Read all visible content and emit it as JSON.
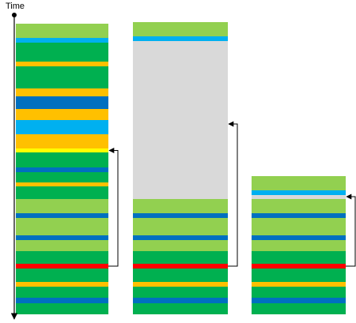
{
  "axis": {
    "label": "Time"
  },
  "colors": {
    "light_green": "#92d050",
    "green": "#00b050",
    "light_blue": "#00b0f0",
    "blue": "#0070c0",
    "orange": "#ffc000",
    "yellow": "#ffff00",
    "red": "#ff0000",
    "gray": "#d9d9d9",
    "arrow": "#000000"
  },
  "columns": [
    {
      "id": "column-1",
      "segments": [
        {
          "color": "light_green",
          "h": 18
        },
        {
          "color": "light_blue",
          "h": 6
        },
        {
          "color": "green",
          "h": 24
        },
        {
          "color": "orange",
          "h": 6
        },
        {
          "color": "green",
          "h": 28
        },
        {
          "color": "orange",
          "h": 10
        },
        {
          "color": "blue",
          "h": 16
        },
        {
          "color": "orange",
          "h": 14
        },
        {
          "color": "light_blue",
          "h": 18
        },
        {
          "color": "orange",
          "h": 18
        },
        {
          "color": "yellow",
          "h": 5
        },
        {
          "color": "green",
          "h": 19
        },
        {
          "color": "blue",
          "h": 6
        },
        {
          "color": "green",
          "h": 13
        },
        {
          "color": "orange",
          "h": 5
        },
        {
          "color": "green",
          "h": 16
        },
        {
          "color": "light_green",
          "h": 18
        },
        {
          "color": "blue",
          "h": 6
        },
        {
          "color": "light_green",
          "h": 22
        },
        {
          "color": "blue",
          "h": 6
        },
        {
          "color": "light_green",
          "h": 14
        },
        {
          "color": "green",
          "h": 16
        },
        {
          "color": "red",
          "h": 6
        },
        {
          "color": "green",
          "h": 17
        },
        {
          "color": "orange",
          "h": 6
        },
        {
          "color": "green",
          "h": 14
        },
        {
          "color": "blue",
          "h": 7
        },
        {
          "color": "green",
          "h": 14
        }
      ]
    },
    {
      "id": "column-2",
      "segments": [
        {
          "color": "light_green",
          "h": 18
        },
        {
          "color": "light_blue",
          "h": 6
        },
        {
          "color": "gray",
          "h": 200
        },
        {
          "color": "light_green",
          "h": 18
        },
        {
          "color": "blue",
          "h": 6
        },
        {
          "color": "light_green",
          "h": 22
        },
        {
          "color": "blue",
          "h": 6
        },
        {
          "color": "light_green",
          "h": 14
        },
        {
          "color": "green",
          "h": 16
        },
        {
          "color": "red",
          "h": 6
        },
        {
          "color": "green",
          "h": 17
        },
        {
          "color": "orange",
          "h": 6
        },
        {
          "color": "green",
          "h": 14
        },
        {
          "color": "blue",
          "h": 7
        },
        {
          "color": "green",
          "h": 14
        }
      ]
    },
    {
      "id": "column-3",
      "segments": [
        {
          "color": "light_green",
          "h": 18
        },
        {
          "color": "light_blue",
          "h": 6
        },
        {
          "color": "gray",
          "h": 5
        },
        {
          "color": "light_green",
          "h": 18
        },
        {
          "color": "blue",
          "h": 6
        },
        {
          "color": "light_green",
          "h": 22
        },
        {
          "color": "blue",
          "h": 6
        },
        {
          "color": "light_green",
          "h": 14
        },
        {
          "color": "green",
          "h": 16
        },
        {
          "color": "red",
          "h": 6
        },
        {
          "color": "green",
          "h": 17
        },
        {
          "color": "orange",
          "h": 6
        },
        {
          "color": "green",
          "h": 14
        },
        {
          "color": "blue",
          "h": 7
        },
        {
          "color": "green",
          "h": 14
        }
      ]
    }
  ]
}
